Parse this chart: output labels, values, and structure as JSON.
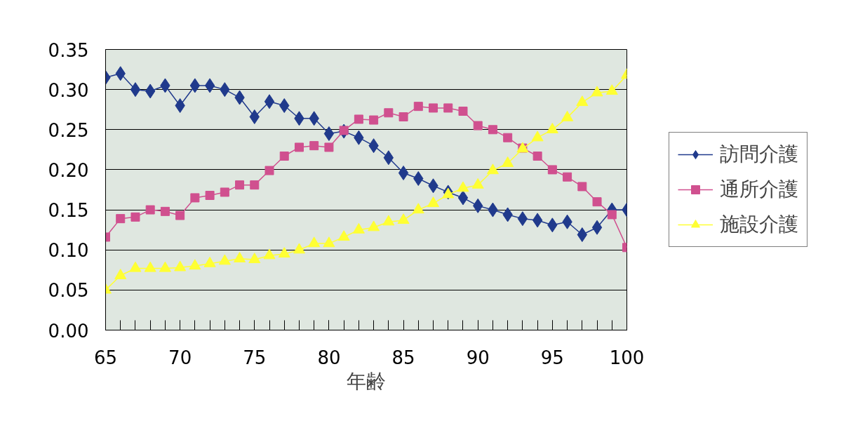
{
  "chart_data": {
    "type": "line",
    "xlabel": "年齢",
    "x": [
      65,
      66,
      67,
      68,
      69,
      70,
      71,
      72,
      73,
      74,
      75,
      76,
      77,
      78,
      79,
      80,
      81,
      82,
      83,
      84,
      85,
      86,
      87,
      88,
      89,
      90,
      91,
      92,
      93,
      94,
      95,
      96,
      97,
      98,
      99,
      100
    ],
    "xlim": [
      65,
      100
    ],
    "xticks": [
      65,
      70,
      75,
      80,
      85,
      90,
      95,
      100
    ],
    "ylim": [
      0,
      0.35
    ],
    "yticks": [
      {
        "value": 0,
        "label": "0.00"
      },
      {
        "value": 0.05,
        "label": "0.05"
      },
      {
        "value": 0.1,
        "label": "0.10"
      },
      {
        "value": 0.15,
        "label": "0.15"
      },
      {
        "value": 0.2,
        "label": "0.20"
      },
      {
        "value": 0.25,
        "label": "0.25"
      },
      {
        "value": 0.3,
        "label": "0.30"
      },
      {
        "value": 0.35,
        "label": "0.35"
      }
    ],
    "grid": "y",
    "legend": "right",
    "line_style": "solid",
    "series": [
      {
        "name": "訪問介護",
        "color": "#203a8c",
        "marker": "diamond",
        "values": [
          0.315,
          0.32,
          0.3,
          0.298,
          0.305,
          0.28,
          0.305,
          0.305,
          0.3,
          0.29,
          0.266,
          0.285,
          0.28,
          0.264,
          0.264,
          0.245,
          0.248,
          0.24,
          0.23,
          0.215,
          0.196,
          0.189,
          0.18,
          0.172,
          0.165,
          0.155,
          0.15,
          0.144,
          0.139,
          0.137,
          0.131,
          0.135,
          0.119,
          0.128,
          0.15,
          0.15
        ]
      },
      {
        "name": "通所介護",
        "color": "#d0508f",
        "marker": "square",
        "values": [
          0.116,
          0.139,
          0.141,
          0.15,
          0.148,
          0.143,
          0.165,
          0.168,
          0.172,
          0.181,
          0.181,
          0.199,
          0.217,
          0.228,
          0.23,
          0.228,
          0.249,
          0.263,
          0.262,
          0.271,
          0.266,
          0.279,
          0.277,
          0.277,
          0.273,
          0.255,
          0.25,
          0.24,
          0.227,
          0.217,
          0.2,
          0.191,
          0.179,
          0.16,
          0.144,
          0.103
        ]
      },
      {
        "name": "施設介護",
        "color": "#ffff33",
        "marker": "triangle",
        "values": [
          0.05,
          0.068,
          0.077,
          0.077,
          0.077,
          0.078,
          0.08,
          0.083,
          0.086,
          0.089,
          0.088,
          0.093,
          0.095,
          0.1,
          0.108,
          0.108,
          0.116,
          0.125,
          0.128,
          0.135,
          0.137,
          0.15,
          0.158,
          0.169,
          0.177,
          0.181,
          0.199,
          0.208,
          0.226,
          0.24,
          0.25,
          0.265,
          0.284,
          0.296,
          0.298,
          0.318
        ]
      }
    ]
  }
}
